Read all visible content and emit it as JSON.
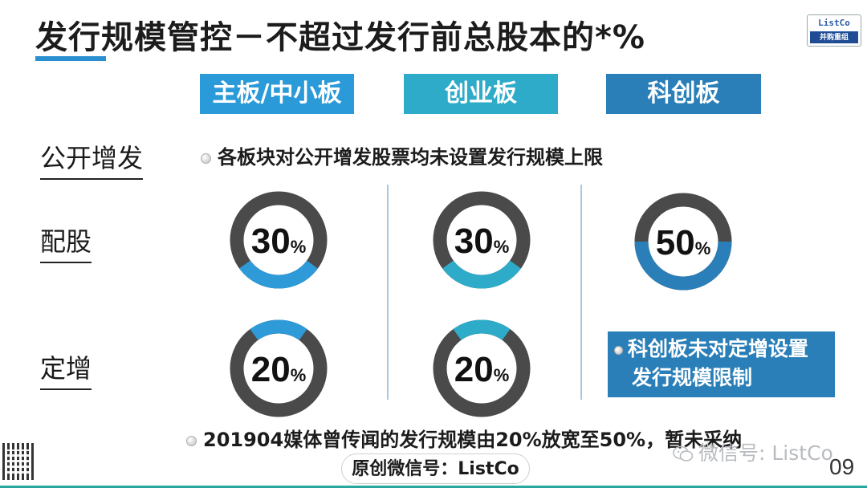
{
  "slide": {
    "title": "发行规模管控－不超过发行前总股本的*%",
    "logo": {
      "top_text": "ListCo",
      "bottom_text": "并购重组"
    },
    "boards": [
      "主板/中小板",
      "创业板",
      "科创板"
    ],
    "rows": {
      "public_issue": {
        "label": "公开增发",
        "note": "各板块对公开增发股票均未设置发行规模上限"
      },
      "rights_issue": {
        "label": "配股",
        "values": [
          {
            "number": "30",
            "unit": "%",
            "percent": 30,
            "color": "#2f9ad8"
          },
          {
            "number": "30",
            "unit": "%",
            "percent": 30,
            "color": "#2eabc8"
          },
          {
            "number": "50",
            "unit": "%",
            "percent": 50,
            "color": "#2a7fb8"
          }
        ]
      },
      "private_placement": {
        "label": "定增",
        "values": [
          {
            "number": "20",
            "unit": "%",
            "percent": 20,
            "color": "#2f9ad8"
          },
          {
            "number": "20",
            "unit": "%",
            "percent": 20,
            "color": "#2eabc8"
          }
        ],
        "star_market_note_line1": "科创板未对定增设置",
        "star_market_note_line2": "发行规模限制"
      }
    },
    "bottom_note": "201904媒体曾传闻的发行规模由20%放宽至50%，暂未采纳",
    "wechat_pill": "原创微信号：ListCo",
    "watermark": "微信号: ListCo",
    "page_number": "09",
    "colors": {
      "ring_gray": "#4a4a4a",
      "accent": "#2a8fd0",
      "footer": "#2aa6a0"
    }
  }
}
